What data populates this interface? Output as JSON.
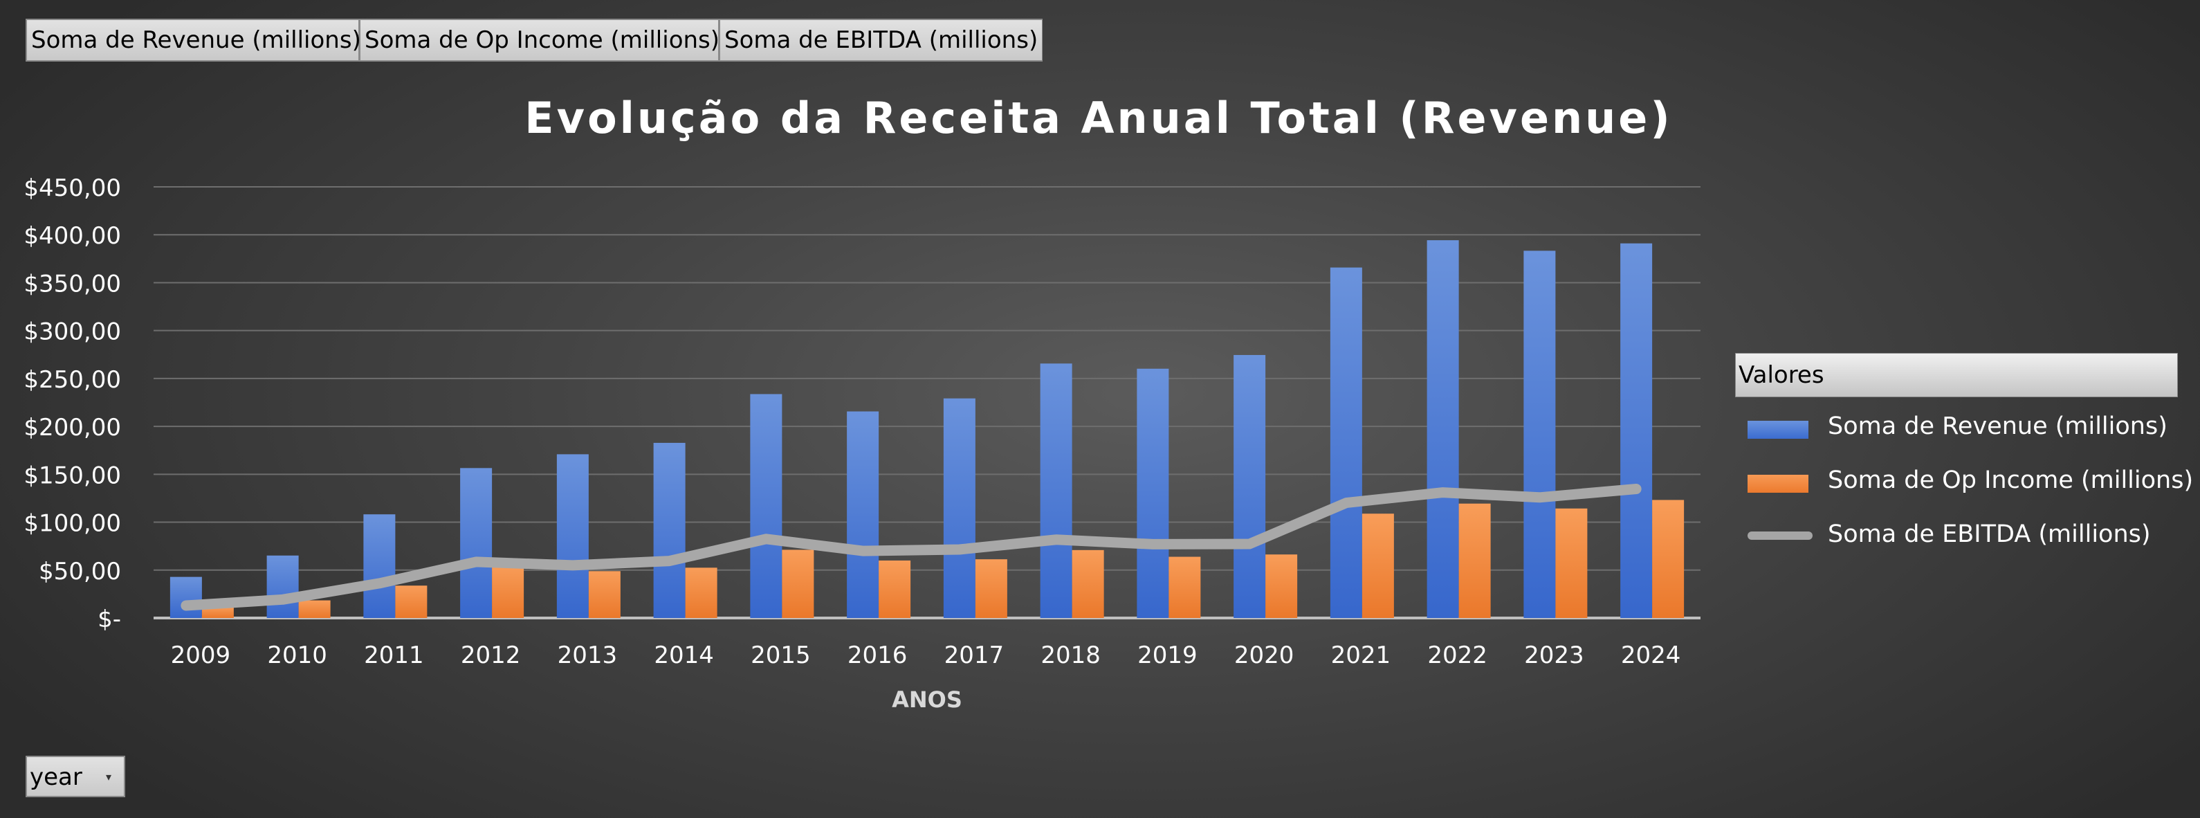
{
  "field_buttons": [
    "Soma de Revenue (millions)",
    "Soma de Op Income (millions)",
    "Soma de EBITDA (millions)"
  ],
  "filter": {
    "label": "year",
    "arrow": "▾"
  },
  "legend": {
    "title": "Valores",
    "items": [
      {
        "label": "Soma de Revenue (millions)",
        "color": "#4472C4"
      },
      {
        "label": "Soma de Op Income (millions)",
        "color": "#ED7D31"
      },
      {
        "label": "Soma de EBITDA (millions)",
        "color": "#A5A5A5"
      }
    ]
  },
  "chart_data": {
    "type": "bar",
    "title": "Evolução da Receita Anual Total (Revenue)",
    "xlabel": "ANOS",
    "ylabel": "",
    "ylim": [
      0,
      450
    ],
    "yticks": [
      0,
      50,
      100,
      150,
      200,
      250,
      300,
      350,
      400,
      450
    ],
    "ytick_labels": [
      "$-",
      "$50,00",
      "$100,00",
      "$150,00",
      "$200,00",
      "$250,00",
      "$300,00",
      "$350,00",
      "$400,00",
      "$450,00"
    ],
    "grid": true,
    "legend_position": "right",
    "categories": [
      "2009",
      "2010",
      "2011",
      "2012",
      "2013",
      "2014",
      "2015",
      "2016",
      "2017",
      "2018",
      "2019",
      "2020",
      "2021",
      "2022",
      "2023",
      "2024"
    ],
    "series": [
      {
        "name": "Soma de Revenue (millions)",
        "type": "bar",
        "color": "#4472C4",
        "values": [
          42.9,
          65.2,
          108.2,
          156.5,
          170.9,
          182.8,
          233.7,
          215.6,
          229.2,
          265.6,
          260.2,
          274.5,
          365.8,
          394.3,
          383.3,
          391.0
        ]
      },
      {
        "name": "Soma de Op Income (millions)",
        "type": "bar",
        "color": "#ED7D31",
        "values": [
          11.7,
          18.4,
          33.8,
          55.2,
          48.9,
          52.5,
          71.2,
          60.0,
          61.3,
          70.9,
          63.9,
          66.3,
          108.9,
          119.4,
          114.3,
          123.2
        ]
      },
      {
        "name": "Soma de EBITDA (millions)",
        "type": "line",
        "color": "#A5A5A5",
        "values": [
          13.0,
          19.3,
          36.2,
          58.6,
          55.0,
          59.5,
          82.5,
          70.0,
          71.5,
          81.8,
          77.0,
          77.3,
          120.2,
          131.0,
          125.8,
          134.7
        ]
      }
    ]
  }
}
